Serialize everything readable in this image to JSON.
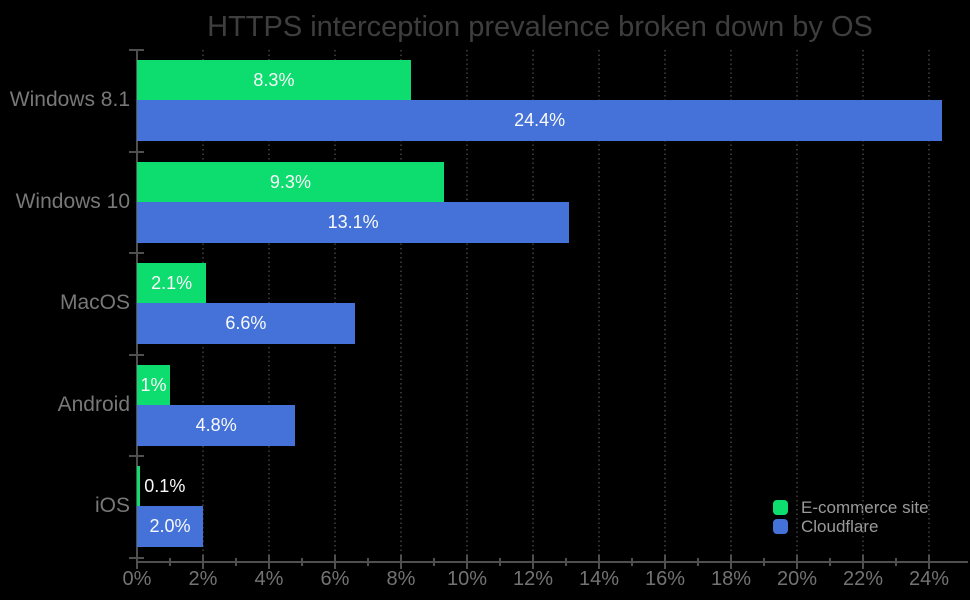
{
  "chart_data": {
    "type": "bar",
    "orientation": "horizontal",
    "title": "HTTPS interception prevalence broken down by OS",
    "categories": [
      "Windows 8.1",
      "Windows 10",
      "MacOS",
      "Android",
      "iOS"
    ],
    "series": [
      {
        "name": "E-commerce site",
        "color": "#0ddc6f",
        "values": [
          8.3,
          9.3,
          2.1,
          1,
          0.1
        ],
        "value_labels": [
          "8.3%",
          "9.3%",
          "2.1%",
          "1%",
          "0.1%"
        ]
      },
      {
        "name": "Cloudflare",
        "color": "#4472d8",
        "values": [
          24.4,
          13.1,
          6.6,
          4.8,
          2.0
        ],
        "value_labels": [
          "24.4%",
          "13.1%",
          "6.6%",
          "4.8%",
          "2.0%"
        ]
      }
    ],
    "x_axis": {
      "min": 0,
      "max": 24,
      "major_tick_step": 2,
      "minor_tick_step": 1,
      "unit": "%",
      "tick_labels": [
        "0%",
        "2%",
        "4%",
        "6%",
        "8%",
        "10%",
        "12%",
        "14%",
        "16%",
        "18%",
        "20%",
        "22%",
        "24%"
      ]
    },
    "legend": {
      "position": "bottom-right",
      "entries": [
        "E-commerce site",
        "Cloudflare"
      ]
    },
    "grid": {
      "vertical_dotted_at_major_ticks": true
    }
  },
  "colors": {
    "background": "#000000",
    "title_text": "#3e3e3e",
    "axis_text": "#737373",
    "category_text": "#787878",
    "legend_text": "#9a9a9a",
    "bar_label_text": "#fafafa",
    "axis_line": "#4f4f4f",
    "gridline": "#313131",
    "ecommerce_green": "#0ddc6f",
    "cloudflare_blue": "#4472d8"
  }
}
